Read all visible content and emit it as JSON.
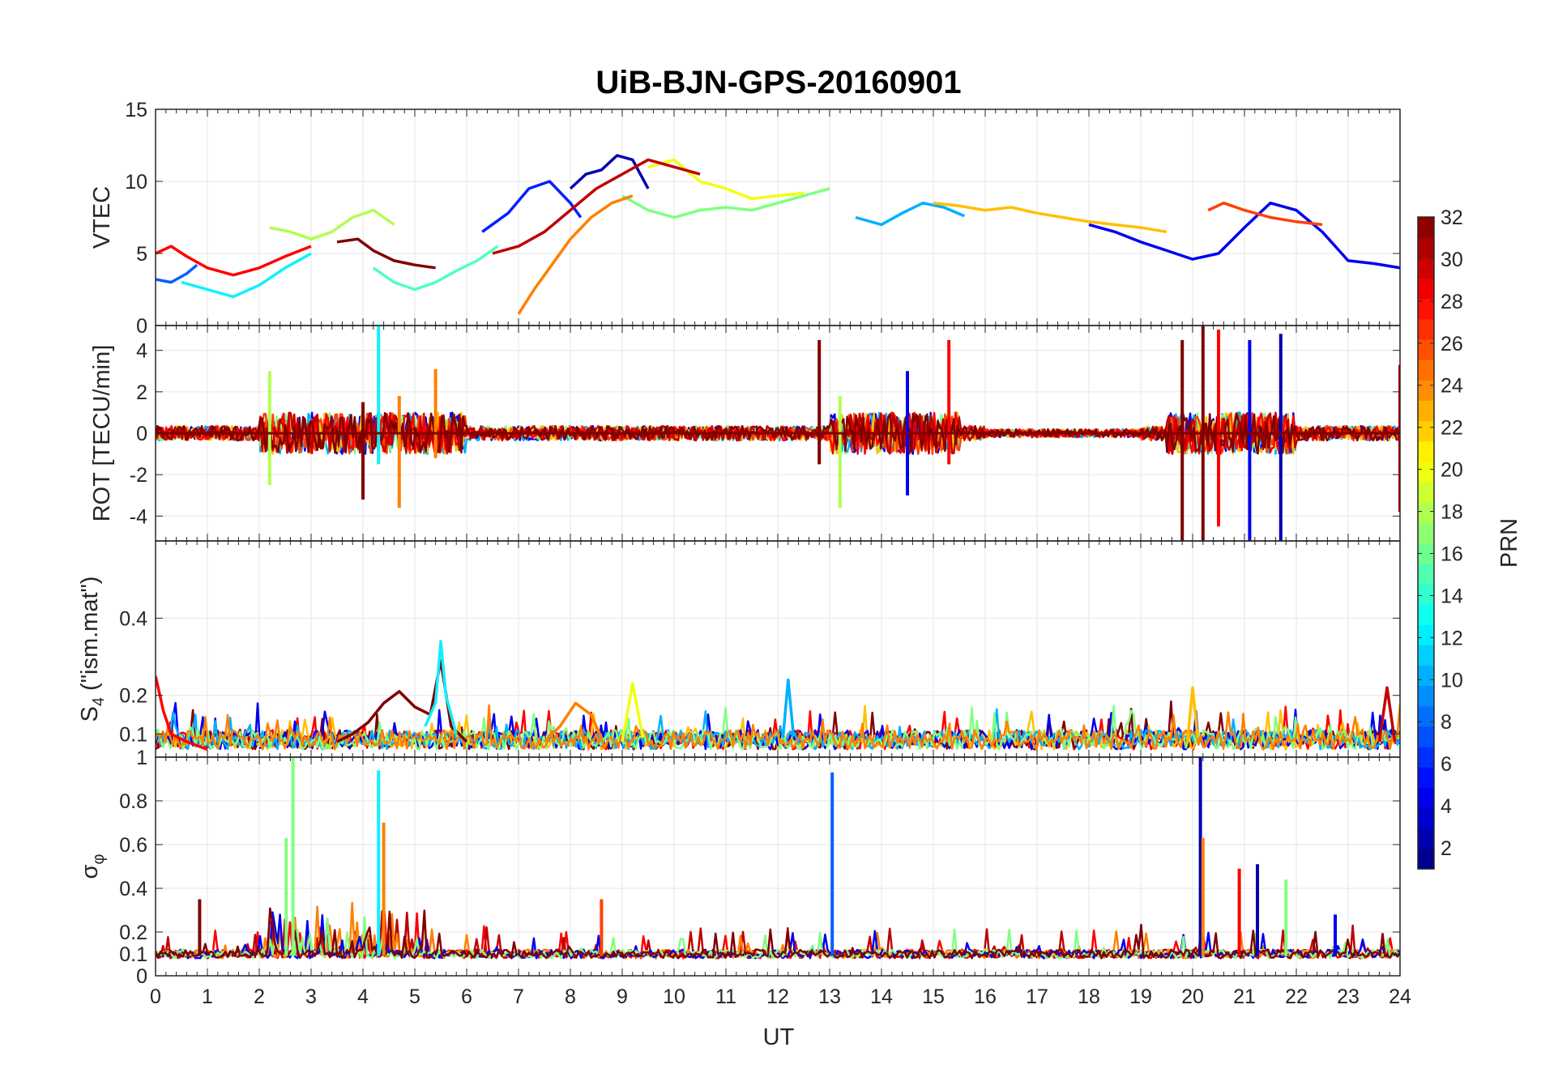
{
  "chart_data": {
    "type": "line",
    "title": "UiB-BJN-GPS-20160901",
    "xlabel": "UT",
    "xlim": [
      0,
      24
    ],
    "x_ticks": [
      "0",
      "1",
      "2",
      "3",
      "4",
      "5",
      "6",
      "7",
      "8",
      "9",
      "10",
      "11",
      "12",
      "13",
      "14",
      "15",
      "16",
      "17",
      "18",
      "19",
      "20",
      "21",
      "22",
      "23",
      "24"
    ],
    "grid": true,
    "colormap": "jet",
    "colorbar": {
      "label": "PRN",
      "range": [
        1,
        32
      ],
      "ticks": [
        "2",
        "4",
        "6",
        "8",
        "10",
        "12",
        "14",
        "16",
        "18",
        "20",
        "22",
        "24",
        "26",
        "28",
        "30",
        "32"
      ],
      "placement": "right"
    },
    "panels": [
      {
        "name": "vtec",
        "ylabel": "VTEC",
        "ylim": [
          0,
          15
        ],
        "y_tick_values": [
          0,
          5,
          10,
          15
        ],
        "y_tick_labels": [
          "0",
          "5",
          "10",
          "15"
        ],
        "series": [
          {
            "prn": 2,
            "color": "#0000b4",
            "x": [
              8.0,
              8.3,
              8.6,
              8.9,
              9.2,
              9.5
            ],
            "y": [
              9.5,
              10.5,
              10.8,
              11.8,
              11.5,
              9.5
            ]
          },
          {
            "prn": 4,
            "color": "#0000f0",
            "x": [
              18.0,
              18.5,
              19.0,
              19.5,
              20.0,
              20.5,
              21.0,
              21.5,
              22.0,
              22.5,
              23.0,
              23.5,
              24.0
            ],
            "y": [
              7.0,
              6.5,
              5.8,
              5.2,
              4.6,
              5.0,
              6.8,
              8.5,
              8.0,
              6.5,
              4.5,
              4.3,
              4.0
            ]
          },
          {
            "prn": 6,
            "color": "#0020ff",
            "x": [
              6.3,
              6.8,
              7.2,
              7.6,
              8.0,
              8.2
            ],
            "y": [
              6.5,
              7.8,
              9.5,
              10.0,
              8.5,
              7.5
            ]
          },
          {
            "prn": 8,
            "color": "#0060ff",
            "x": [
              0.0,
              0.3,
              0.6,
              0.8
            ],
            "y": [
              3.2,
              3.0,
              3.6,
              4.2
            ]
          },
          {
            "prn": 10,
            "color": "#00b0ff",
            "x": [
              13.5,
              14.0,
              14.4,
              14.8,
              15.2,
              15.6
            ],
            "y": [
              7.5,
              7.0,
              7.8,
              8.5,
              8.2,
              7.6
            ]
          },
          {
            "prn": 12,
            "color": "#10f0ff",
            "x": [
              0.5,
              1.0,
              1.5,
              2.0,
              2.5,
              3.0
            ],
            "y": [
              3.0,
              2.5,
              2.0,
              2.8,
              4.0,
              5.0
            ]
          },
          {
            "prn": 14,
            "color": "#50ffc0",
            "x": [
              4.2,
              4.6,
              5.0,
              5.4,
              5.8,
              6.2,
              6.6
            ],
            "y": [
              4.0,
              3.0,
              2.5,
              3.0,
              3.8,
              4.5,
              5.5
            ]
          },
          {
            "prn": 16,
            "color": "#80ff80",
            "x": [
              9.0,
              9.5,
              10.0,
              10.5,
              11.0,
              11.5,
              12.0,
              12.5,
              13.0
            ],
            "y": [
              9.0,
              8.0,
              7.5,
              8.0,
              8.2,
              8.0,
              8.5,
              9.0,
              9.5
            ]
          },
          {
            "prn": 18,
            "color": "#b0ff50",
            "x": [
              2.2,
              2.6,
              3.0,
              3.4,
              3.8,
              4.2,
              4.6
            ],
            "y": [
              6.8,
              6.5,
              6.0,
              6.5,
              7.5,
              8.0,
              7.0
            ]
          },
          {
            "prn": 20,
            "color": "#f0ff10",
            "x": [
              9.5,
              10.0,
              10.5,
              11.0,
              11.5,
              12.0,
              12.5
            ],
            "y": [
              11.0,
              11.5,
              10.0,
              9.5,
              8.8,
              9.0,
              9.2
            ]
          },
          {
            "prn": 22,
            "color": "#ffc000",
            "x": [
              15.0,
              15.5,
              16.0,
              16.5,
              17.0,
              17.5,
              18.0,
              18.5,
              19.0,
              19.5
            ],
            "y": [
              8.5,
              8.3,
              8.0,
              8.2,
              7.8,
              7.5,
              7.2,
              7.0,
              6.8,
              6.5
            ]
          },
          {
            "prn": 24,
            "color": "#ff8000",
            "x": [
              7.0,
              7.3,
              7.6,
              8.0,
              8.4,
              8.8,
              9.2
            ],
            "y": [
              0.8,
              2.5,
              4.0,
              6.0,
              7.5,
              8.5,
              9.0
            ]
          },
          {
            "prn": 26,
            "color": "#ff4000",
            "x": [
              20.3,
              20.6,
              21.0,
              21.5,
              22.0,
              22.5
            ],
            "y": [
              8.0,
              8.5,
              8.0,
              7.5,
              7.2,
              7.0
            ]
          },
          {
            "prn": 28,
            "color": "#ff0000",
            "x": [
              0.0,
              0.3,
              0.6,
              1.0,
              1.5,
              2.0,
              2.5,
              3.0
            ],
            "y": [
              5.0,
              5.5,
              4.8,
              4.0,
              3.5,
              4.0,
              4.8,
              5.5
            ]
          },
          {
            "prn": 30,
            "color": "#c00000",
            "x": [
              6.5,
              7.0,
              7.5,
              8.0,
              8.5,
              9.0,
              9.5,
              10.0,
              10.5
            ],
            "y": [
              5.0,
              5.5,
              6.5,
              8.0,
              9.5,
              10.5,
              11.5,
              11.0,
              10.5
            ]
          },
          {
            "prn": 32,
            "color": "#800000",
            "x": [
              3.5,
              3.9,
              4.2,
              4.6,
              5.0,
              5.4
            ],
            "y": [
              5.8,
              6.0,
              5.2,
              4.5,
              4.2,
              4.0
            ]
          }
        ]
      },
      {
        "name": "rot",
        "ylabel": "ROT [TECU/min]",
        "ylim": [
          -5.2,
          5.2
        ],
        "y_tick_values": [
          -4,
          -2,
          0,
          2,
          4
        ],
        "y_tick_labels": [
          "-4",
          "-2",
          "0",
          "2",
          "4"
        ],
        "spikes": [
          {
            "x": 4.3,
            "lo": -1.5,
            "hi": 5.2,
            "color": "#10f0ff"
          },
          {
            "x": 4.0,
            "lo": -3.2,
            "hi": 1.5,
            "color": "#800000"
          },
          {
            "x": 4.7,
            "lo": -3.6,
            "hi": 1.8,
            "color": "#ff8000"
          },
          {
            "x": 5.4,
            "lo": -1.2,
            "hi": 3.1,
            "color": "#ff8000"
          },
          {
            "x": 2.2,
            "lo": -2.5,
            "hi": 3.0,
            "color": "#b0ff50"
          },
          {
            "x": 12.8,
            "lo": -1.5,
            "hi": 4.5,
            "color": "#800000"
          },
          {
            "x": 13.2,
            "lo": -3.6,
            "hi": 1.8,
            "color": "#b0ff50"
          },
          {
            "x": 15.3,
            "lo": -1.5,
            "hi": 4.5,
            "color": "#ff0000"
          },
          {
            "x": 14.5,
            "lo": -3.0,
            "hi": 3.0,
            "color": "#0000f0"
          },
          {
            "x": 19.8,
            "lo": -5.2,
            "hi": 4.5,
            "color": "#800000"
          },
          {
            "x": 20.2,
            "lo": -5.2,
            "hi": 5.2,
            "color": "#800000"
          },
          {
            "x": 20.5,
            "lo": -4.5,
            "hi": 5.0,
            "color": "#ff0000"
          },
          {
            "x": 21.1,
            "lo": -5.2,
            "hi": 4.5,
            "color": "#0000f0"
          },
          {
            "x": 21.7,
            "lo": -5.2,
            "hi": 4.8,
            "color": "#0000b4"
          },
          {
            "x": 24.0,
            "lo": -3.8,
            "hi": 3.3,
            "color": "#c00000"
          }
        ]
      },
      {
        "name": "s4",
        "ylabel": "S4 (\"ism.mat\")",
        "ylabel_main": "S",
        "ylabel_sub": "4",
        "ylabel_rest": " (\"ism.mat\")",
        "ylim": [
          0.04,
          0.6
        ],
        "y_tick_values": [
          0.1,
          0.2,
          0.4
        ],
        "y_tick_labels": [
          "0.1",
          "0.2",
          "0.4"
        ],
        "series": [
          {
            "prn": 32,
            "color": "#800000",
            "x": [
              3.5,
              3.8,
              4.1,
              4.4,
              4.7,
              5.0,
              5.3,
              5.5,
              5.7,
              6.0
            ],
            "y": [
              0.08,
              0.1,
              0.13,
              0.18,
              0.21,
              0.17,
              0.15,
              0.29,
              0.12,
              0.08
            ]
          },
          {
            "prn": 12,
            "color": "#10f0ff",
            "x": [
              5.2,
              5.4,
              5.5,
              5.6,
              5.8
            ],
            "y": [
              0.12,
              0.18,
              0.34,
              0.2,
              0.1
            ]
          },
          {
            "prn": 28,
            "color": "#ff0000",
            "x": [
              0.0,
              0.15,
              0.3,
              0.6,
              1.0
            ],
            "y": [
              0.25,
              0.16,
              0.1,
              0.08,
              0.06
            ]
          },
          {
            "prn": 24,
            "color": "#ff8000",
            "x": [
              7.5,
              7.8,
              8.1,
              8.4,
              8.6
            ],
            "y": [
              0.08,
              0.12,
              0.18,
              0.15,
              0.09
            ]
          },
          {
            "prn": 20,
            "color": "#f0ff10",
            "x": [
              9.0,
              9.2,
              9.4
            ],
            "y": [
              0.08,
              0.23,
              0.09
            ]
          },
          {
            "prn": 10,
            "color": "#00b0ff",
            "x": [
              12.1,
              12.2,
              12.3
            ],
            "y": [
              0.09,
              0.24,
              0.1
            ]
          },
          {
            "prn": 22,
            "color": "#ffc000",
            "x": [
              19.9,
              20.0,
              20.1
            ],
            "y": [
              0.08,
              0.22,
              0.09
            ]
          },
          {
            "prn": 30,
            "color": "#c00000",
            "x": [
              23.6,
              23.75,
              23.9
            ],
            "y": [
              0.08,
              0.22,
              0.08
            ]
          }
        ]
      },
      {
        "name": "sigma-phi",
        "ylabel": "σφ",
        "ylabel_main": "σ",
        "ylabel_sub": "φ",
        "ylim": [
          0,
          1
        ],
        "y_tick_values": [
          0,
          0.1,
          0.2,
          0.4,
          0.6,
          0.8,
          1
        ],
        "y_tick_labels": [
          "0",
          "0.1",
          "0.2",
          "0.4",
          "0.6",
          "0.8",
          "1"
        ],
        "spikes": [
          {
            "x": 2.65,
            "hi": 1.0,
            "color": "#80ff80"
          },
          {
            "x": 2.52,
            "hi": 0.63,
            "color": "#80ff80"
          },
          {
            "x": 4.3,
            "hi": 0.94,
            "color": "#10f0ff"
          },
          {
            "x": 4.4,
            "hi": 0.7,
            "color": "#ff8000"
          },
          {
            "x": 13.05,
            "hi": 0.93,
            "color": "#0060ff"
          },
          {
            "x": 20.15,
            "hi": 1.0,
            "color": "#0000b4"
          },
          {
            "x": 20.2,
            "hi": 0.63,
            "color": "#ff8000"
          },
          {
            "x": 20.9,
            "hi": 0.49,
            "color": "#ff0000"
          },
          {
            "x": 21.25,
            "hi": 0.51,
            "color": "#0000b4"
          },
          {
            "x": 21.8,
            "hi": 0.44,
            "color": "#80ff80"
          },
          {
            "x": 0.85,
            "hi": 0.35,
            "color": "#800000"
          },
          {
            "x": 8.6,
            "hi": 0.35,
            "color": "#ff4000"
          },
          {
            "x": 22.75,
            "hi": 0.28,
            "color": "#0000f0"
          }
        ]
      }
    ]
  }
}
